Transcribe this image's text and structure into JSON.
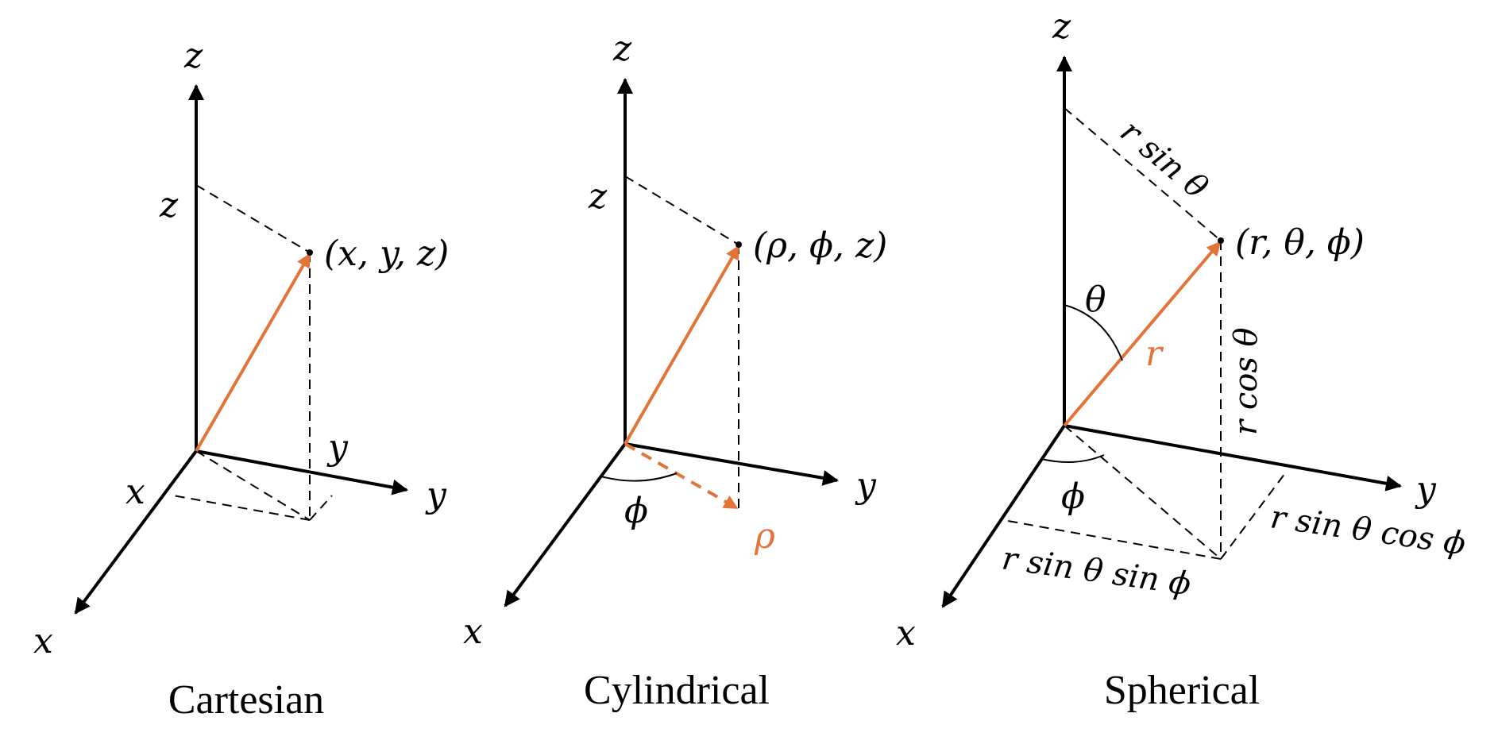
{
  "colors": {
    "axis": "#000000",
    "vector": "#e2743a"
  },
  "panels": {
    "cartesian": {
      "caption": "Cartesian",
      "axis_labels": {
        "x": "x",
        "y": "y",
        "z": "z"
      },
      "point_label": "(x, y, z)",
      "component_labels": {
        "x": "x",
        "y": "y",
        "z": "z"
      }
    },
    "cylindrical": {
      "caption": "Cylindrical",
      "axis_labels": {
        "x": "x",
        "y": "y",
        "z": "z"
      },
      "point_label": "(ρ, ϕ, z)",
      "component_labels": {
        "z": "z",
        "phi": "ϕ",
        "rho": "ρ"
      }
    },
    "spherical": {
      "caption": "Spherical",
      "axis_labels": {
        "x": "x",
        "y": "y",
        "z": "z"
      },
      "point_label": "(r, θ, ϕ)",
      "component_labels": {
        "theta": "θ",
        "r": "r",
        "phi": "ϕ",
        "r_sin_theta": "r sin θ",
        "r_cos_theta": "r cos θ",
        "r_sin_theta_cos_phi": "r sin θ cos ϕ",
        "r_sin_theta_sin_phi": "r sin θ sin ϕ"
      }
    }
  }
}
